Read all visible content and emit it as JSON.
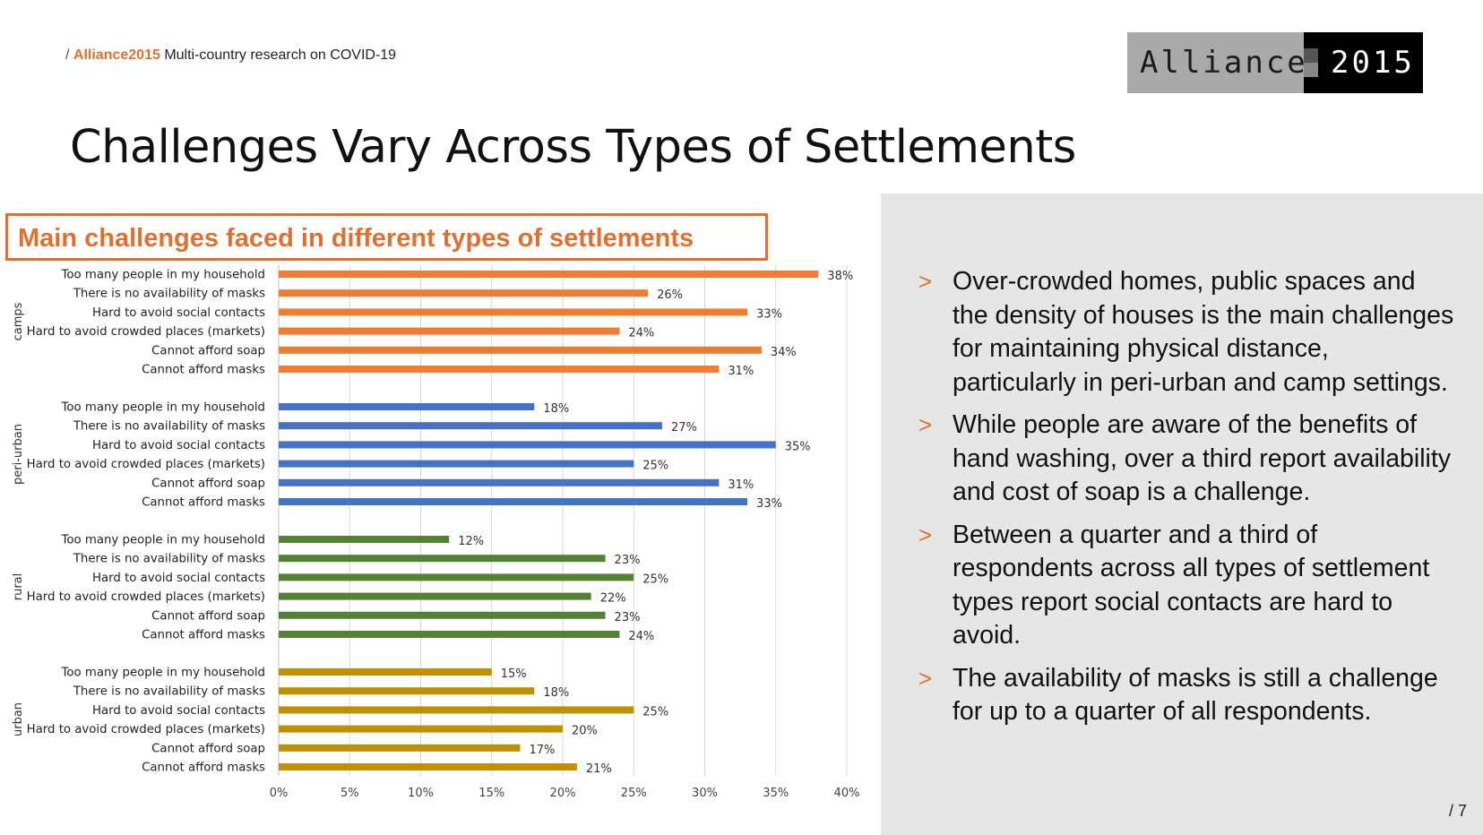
{
  "header": {
    "slash": "/",
    "brand": "Alliance2015",
    "subtitle": "Multi-country research on COVID-19"
  },
  "logo": {
    "left_word": "Alliance",
    "right_word": "2015"
  },
  "slide_title": "Challenges Vary Across Types of Settlements",
  "bullets": [
    {
      "marker": ">",
      "text": "Over-crowded homes, public spaces and the density of houses is the main challenges for maintaining physical distance, particularly in peri-urban and camp settings."
    },
    {
      "marker": ">",
      "text": "While people are aware of the benefits of hand washing, over a third report availability and cost of soap is a challenge."
    },
    {
      "marker": ">",
      "text": "Between a quarter and a third of respondents across all types of settlement types report social contacts are hard to avoid."
    },
    {
      "marker": ">",
      "text": "The availability of masks is still a challenge for up to a quarter of all respondents."
    }
  ],
  "page_number": "/ 7",
  "chart_data": {
    "type": "bar",
    "orientation": "horizontal",
    "title": "Main challenges faced in different types of settlements",
    "categories": [
      "Too many people in my household",
      "There is no availability of masks",
      "Hard to avoid social contacts",
      "Hard to avoid crowded places (markets)",
      "Cannot afford soap",
      "Cannot afford masks"
    ],
    "groups": [
      {
        "name": "camps",
        "color": "#ed7d31",
        "values": [
          38,
          26,
          33,
          24,
          34,
          31
        ]
      },
      {
        "name": "peri-urban",
        "color": "#4472c4",
        "values": [
          18,
          27,
          35,
          25,
          31,
          33
        ]
      },
      {
        "name": "rural",
        "color": "#548235",
        "values": [
          12,
          23,
          25,
          22,
          23,
          24
        ]
      },
      {
        "name": "urban",
        "color": "#bf9000",
        "values": [
          15,
          18,
          25,
          20,
          17,
          21
        ]
      }
    ],
    "value_suffix": "%",
    "xlim": [
      0,
      40
    ],
    "xticks": [
      "0%",
      "5%",
      "10%",
      "15%",
      "20%",
      "25%",
      "30%",
      "35%",
      "40%"
    ],
    "grid": true
  }
}
